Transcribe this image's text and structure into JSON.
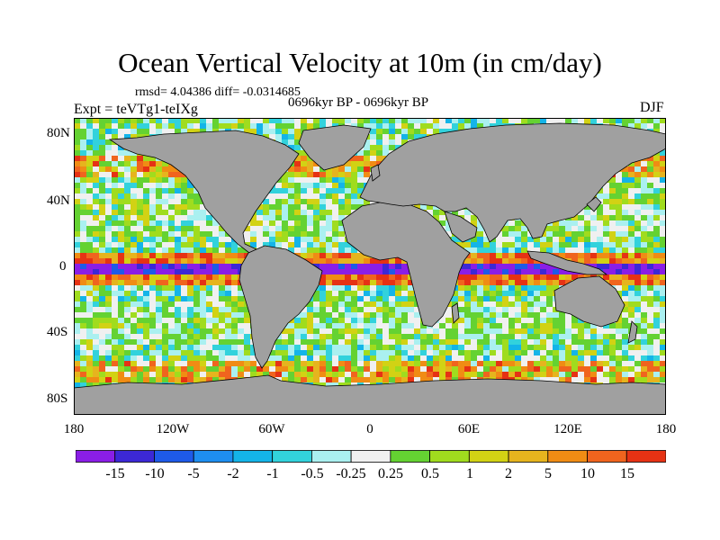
{
  "title": "Ocean Vertical Velocity at 10m (in cm/day)",
  "stats": "rmsd= 4.04386 diff= -0.0314685",
  "period": "0696kyr BP - 0696kyr BP",
  "experiment": "Expt = teVTg1-teIXg",
  "season": "DJF",
  "lat_labels": [
    "80N",
    "40N",
    "0",
    "40S",
    "80S"
  ],
  "lon_labels": [
    "180",
    "120W",
    "60W",
    "0",
    "60E",
    "120E",
    "180"
  ],
  "colorbar": {
    "colors": [
      "#8a1ee6",
      "#3c28d6",
      "#1e5ae8",
      "#1e8ef0",
      "#14b4e8",
      "#32d2dc",
      "#aaf0f0",
      "#f0f0f0",
      "#64d232",
      "#a0dc1e",
      "#d2d214",
      "#e6b41e",
      "#f08c14",
      "#f0641e",
      "#e63214"
    ],
    "labels": [
      "-15",
      "-10",
      "-5",
      "-2",
      "-1",
      "-0.5",
      "-0.25",
      "0.25",
      "0.5",
      "1",
      "2",
      "5",
      "10",
      "15"
    ]
  },
  "colors": {
    "land": "#a0a0a0",
    "background": "#ffffff"
  }
}
